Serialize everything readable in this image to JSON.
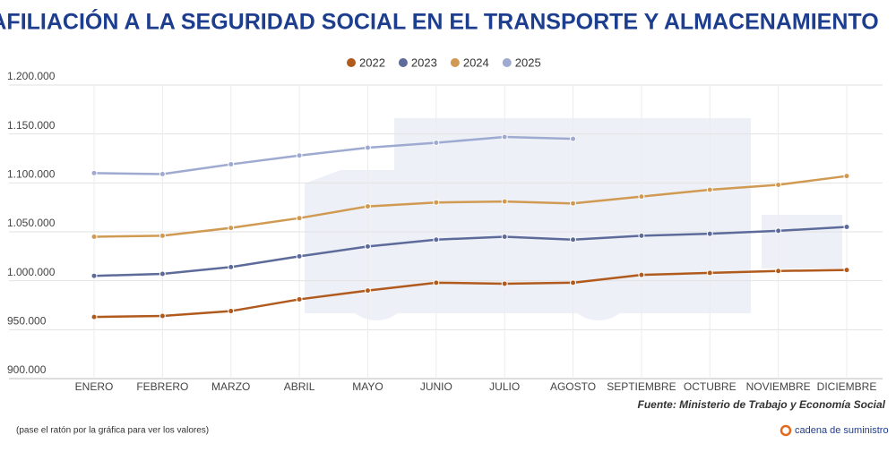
{
  "chart_data": {
    "type": "line",
    "title": "AFILIACIÓN A LA SEGURIDAD SOCIAL EN EL TRANSPORTE Y ALMACENAMIENTO",
    "categories": [
      "ENERO",
      "FEBRERO",
      "MARZO",
      "ABRIL",
      "MAYO",
      "JUNIO",
      "JULIO",
      "AGOSTO",
      "SEPTIEMBRE",
      "OCTUBRE",
      "NOVIEMBRE",
      "DICIEMBRE"
    ],
    "series": [
      {
        "name": "2022",
        "color": "#b05a1e",
        "values": [
          963000,
          964000,
          969000,
          981000,
          990000,
          998000,
          997000,
          998000,
          1006000,
          1008000,
          1010000,
          1011000
        ]
      },
      {
        "name": "2023",
        "color": "#5d6b9a",
        "values": [
          1005000,
          1007000,
          1014000,
          1025000,
          1035000,
          1042000,
          1045000,
          1042000,
          1046000,
          1048000,
          1051000,
          1055000
        ]
      },
      {
        "name": "2024",
        "color": "#d09a52",
        "values": [
          1045000,
          1046000,
          1054000,
          1064000,
          1076000,
          1080000,
          1081000,
          1079000,
          1086000,
          1093000,
          1098000,
          1107000
        ]
      },
      {
        "name": "2025",
        "color": "#9eaad0",
        "values": [
          1110000,
          1109000,
          1119000,
          1128000,
          1136000,
          1141000,
          1147000,
          1145000,
          null,
          null,
          null,
          null
        ]
      }
    ],
    "ylim": [
      900000,
      1200000
    ],
    "yticks": [
      {
        "value": 900000,
        "label": "900.000"
      },
      {
        "value": 950000,
        "label": "950.000"
      },
      {
        "value": 1000000,
        "label": "1.000.000"
      },
      {
        "value": 1050000,
        "label": "1.050.000"
      },
      {
        "value": 1100000,
        "label": "1.100.000"
      },
      {
        "value": 1150000,
        "label": "1.150.000"
      },
      {
        "value": 1200000,
        "label": "1.200.000"
      }
    ],
    "grid": true,
    "legend": "top",
    "source": "Fuente: Ministerio de Trabajo y Economía Social",
    "note": "(pase el ratón por la gráfica para ver los valores)",
    "brand": "cadena de suministro"
  }
}
